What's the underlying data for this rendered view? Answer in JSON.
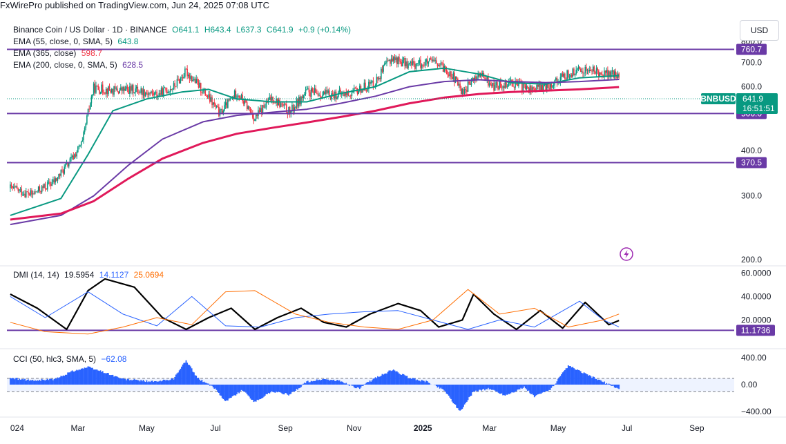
{
  "header": {
    "published": "FxWirePro published on TradingView.com, Jun 24, 2025 07:08 UTC",
    "currency_button": "USD"
  },
  "main_legend": {
    "symbol": "Binance Coin / US Dollar · 1D · BINANCE",
    "open": "O641.1",
    "high": "H643.4",
    "low": "L637.3",
    "close": "C641.9",
    "change": "+0.9 (+0.14%)",
    "ema55_label": "EMA (55, close, 0, SMA, 5)",
    "ema55_value": "643.8",
    "ema365_label": "EMA (365, close)",
    "ema365_value": "598.7",
    "ema200_label": "EMA (200, close, 0, SMA, 5)",
    "ema200_value": "628.5"
  },
  "dmi_legend": {
    "label": "DMI (14, 14)",
    "adx": "19.5954",
    "plus_di": "14.1127",
    "minus_di": "25.0694"
  },
  "cci_legend": {
    "label": "CCI (50, hlc3, SMA, 5)",
    "value": "−62.08"
  },
  "colors": {
    "up": "#089981",
    "down": "#f23645",
    "ema55": "#089981",
    "ema200": "#6a3aa6",
    "ema365": "#e0195a",
    "hline": "#6a3aa6",
    "adx": "#000000",
    "plus_di": "#2962ff",
    "minus_di": "#ff6d00",
    "cci": "#2962ff"
  },
  "chart_data": [
    {
      "type": "candlestick",
      "title": "Binance Coin / US Dollar · 1D · BINANCE",
      "x_ticks": [
        "024",
        "Mar",
        "May",
        "Jul",
        "Sep",
        "Nov",
        "2025",
        "Mar",
        "May",
        "Jul",
        "Sep"
      ],
      "y_ticks": [
        "800.0",
        "700.0",
        "600.0",
        "400.0",
        "300.0",
        "200.0"
      ],
      "ylim": [
        200,
        800
      ],
      "y_scale": "log",
      "horizontal_levels": [
        {
          "value": 760.7,
          "label": "760.7"
        },
        {
          "value": 506.0,
          "label": "506.0"
        },
        {
          "value": 370.5,
          "label": "370.5"
        }
      ],
      "last_price": {
        "symbol": "BNBUSD",
        "value": 641.9,
        "label": "641.9",
        "countdown": "16:51:51"
      },
      "close_path": [
        {
          "x": "2024-01-01",
          "y": 315
        },
        {
          "x": "2024-01-20",
          "y": 302
        },
        {
          "x": "2024-02-10",
          "y": 330
        },
        {
          "x": "2024-02-25",
          "y": 380
        },
        {
          "x": "2024-03-05",
          "y": 420
        },
        {
          "x": "2024-03-15",
          "y": 595
        },
        {
          "x": "2024-04-01",
          "y": 585
        },
        {
          "x": "2024-04-20",
          "y": 590
        },
        {
          "x": "2024-05-10",
          "y": 570
        },
        {
          "x": "2024-05-25",
          "y": 600
        },
        {
          "x": "2024-06-05",
          "y": 660
        },
        {
          "x": "2024-06-15",
          "y": 610
        },
        {
          "x": "2024-07-05",
          "y": 505
        },
        {
          "x": "2024-07-20",
          "y": 580
        },
        {
          "x": "2024-08-05",
          "y": 490
        },
        {
          "x": "2024-08-20",
          "y": 560
        },
        {
          "x": "2024-09-05",
          "y": 510
        },
        {
          "x": "2024-09-20",
          "y": 580
        },
        {
          "x": "2024-10-10",
          "y": 570
        },
        {
          "x": "2024-10-30",
          "y": 575
        },
        {
          "x": "2024-11-20",
          "y": 620
        },
        {
          "x": "2024-12-04",
          "y": 720
        },
        {
          "x": "2024-12-20",
          "y": 690
        },
        {
          "x": "2025-01-10",
          "y": 700
        },
        {
          "x": "2025-01-25",
          "y": 660
        },
        {
          "x": "2025-02-05",
          "y": 580
        },
        {
          "x": "2025-02-20",
          "y": 650
        },
        {
          "x": "2025-03-05",
          "y": 600
        },
        {
          "x": "2025-03-20",
          "y": 620
        },
        {
          "x": "2025-04-05",
          "y": 590
        },
        {
          "x": "2025-04-20",
          "y": 600
        },
        {
          "x": "2025-05-10",
          "y": 650
        },
        {
          "x": "2025-05-25",
          "y": 670
        },
        {
          "x": "2025-06-10",
          "y": 655
        },
        {
          "x": "2025-06-24",
          "y": 641.9
        }
      ],
      "series": [
        {
          "name": "EMA (55, close, 0, SMA, 5)",
          "values": [
            {
              "x": "2024-01-01",
              "y": 265
            },
            {
              "x": "2024-02-15",
              "y": 295
            },
            {
              "x": "2024-03-10",
              "y": 390
            },
            {
              "x": "2024-04-01",
              "y": 515
            },
            {
              "x": "2024-05-01",
              "y": 555
            },
            {
              "x": "2024-06-01",
              "y": 580
            },
            {
              "x": "2024-06-25",
              "y": 590
            },
            {
              "x": "2024-07-20",
              "y": 555
            },
            {
              "x": "2024-08-20",
              "y": 545
            },
            {
              "x": "2024-09-20",
              "y": 545
            },
            {
              "x": "2024-10-20",
              "y": 575
            },
            {
              "x": "2024-11-20",
              "y": 600
            },
            {
              "x": "2024-12-20",
              "y": 660
            },
            {
              "x": "2025-01-20",
              "y": 675
            },
            {
              "x": "2025-02-20",
              "y": 650
            },
            {
              "x": "2025-03-20",
              "y": 615
            },
            {
              "x": "2025-04-20",
              "y": 610
            },
            {
              "x": "2025-05-20",
              "y": 635
            },
            {
              "x": "2025-06-24",
              "y": 643.8
            }
          ]
        },
        {
          "name": "EMA (200, close, 0, SMA, 5)",
          "values": [
            {
              "x": "2024-01-01",
              "y": 250
            },
            {
              "x": "2024-02-15",
              "y": 265
            },
            {
              "x": "2024-03-15",
              "y": 300
            },
            {
              "x": "2024-04-15",
              "y": 365
            },
            {
              "x": "2024-05-15",
              "y": 430
            },
            {
              "x": "2024-06-20",
              "y": 480
            },
            {
              "x": "2024-07-20",
              "y": 500
            },
            {
              "x": "2024-08-20",
              "y": 510
            },
            {
              "x": "2024-09-20",
              "y": 520
            },
            {
              "x": "2024-10-20",
              "y": 540
            },
            {
              "x": "2024-11-20",
              "y": 565
            },
            {
              "x": "2024-12-20",
              "y": 600
            },
            {
              "x": "2025-01-20",
              "y": 620
            },
            {
              "x": "2025-02-20",
              "y": 627
            },
            {
              "x": "2025-03-20",
              "y": 620
            },
            {
              "x": "2025-04-20",
              "y": 616
            },
            {
              "x": "2025-05-20",
              "y": 620
            },
            {
              "x": "2025-06-24",
              "y": 628.5
            }
          ]
        },
        {
          "name": "EMA (365, close)",
          "values": [
            {
              "x": "2024-01-01",
              "y": 258
            },
            {
              "x": "2024-02-15",
              "y": 268
            },
            {
              "x": "2024-03-15",
              "y": 290
            },
            {
              "x": "2024-04-15",
              "y": 335
            },
            {
              "x": "2024-05-15",
              "y": 380
            },
            {
              "x": "2024-06-20",
              "y": 420
            },
            {
              "x": "2024-07-20",
              "y": 445
            },
            {
              "x": "2024-08-20",
              "y": 462
            },
            {
              "x": "2024-09-20",
              "y": 478
            },
            {
              "x": "2024-10-20",
              "y": 495
            },
            {
              "x": "2024-11-20",
              "y": 515
            },
            {
              "x": "2024-12-20",
              "y": 540
            },
            {
              "x": "2025-01-20",
              "y": 560
            },
            {
              "x": "2025-02-20",
              "y": 573
            },
            {
              "x": "2025-03-20",
              "y": 580
            },
            {
              "x": "2025-04-20",
              "y": 585
            },
            {
              "x": "2025-05-20",
              "y": 590
            },
            {
              "x": "2025-06-24",
              "y": 598.7
            }
          ]
        }
      ]
    },
    {
      "type": "line",
      "title": "DMI (14, 14)",
      "y_ticks": [
        "60.0000",
        "40.0000",
        "20.0000"
      ],
      "ylim": [
        0,
        60
      ],
      "horizontal_levels": [
        {
          "value": 11.1736,
          "label": "11.1736"
        }
      ],
      "series": [
        {
          "name": "ADX",
          "values": [
            {
              "x": "2024-01-01",
              "y": 42
            },
            {
              "x": "2024-01-25",
              "y": 30
            },
            {
              "x": "2024-02-20",
              "y": 12
            },
            {
              "x": "2024-03-10",
              "y": 45
            },
            {
              "x": "2024-03-25",
              "y": 55
            },
            {
              "x": "2024-04-20",
              "y": 48
            },
            {
              "x": "2024-05-15",
              "y": 22
            },
            {
              "x": "2024-06-05",
              "y": 12
            },
            {
              "x": "2024-06-25",
              "y": 22
            },
            {
              "x": "2024-07-15",
              "y": 30
            },
            {
              "x": "2024-08-05",
              "y": 12
            },
            {
              "x": "2024-08-25",
              "y": 22
            },
            {
              "x": "2024-09-15",
              "y": 30
            },
            {
              "x": "2024-10-05",
              "y": 18
            },
            {
              "x": "2024-10-25",
              "y": 14
            },
            {
              "x": "2024-11-15",
              "y": 25
            },
            {
              "x": "2024-12-10",
              "y": 34
            },
            {
              "x": "2024-12-30",
              "y": 28
            },
            {
              "x": "2025-01-15",
              "y": 14
            },
            {
              "x": "2025-02-05",
              "y": 20
            },
            {
              "x": "2025-02-15",
              "y": 42
            },
            {
              "x": "2025-03-05",
              "y": 25
            },
            {
              "x": "2025-03-25",
              "y": 12
            },
            {
              "x": "2025-04-15",
              "y": 28
            },
            {
              "x": "2025-05-05",
              "y": 13
            },
            {
              "x": "2025-05-25",
              "y": 35
            },
            {
              "x": "2025-06-15",
              "y": 16
            },
            {
              "x": "2025-06-24",
              "y": 19.5954
            }
          ]
        },
        {
          "name": "+DI",
          "values": [
            {
              "x": "2024-01-01",
              "y": 40
            },
            {
              "x": "2024-02-01",
              "y": 22
            },
            {
              "x": "2024-03-10",
              "y": 44
            },
            {
              "x": "2024-04-10",
              "y": 25
            },
            {
              "x": "2024-05-10",
              "y": 15
            },
            {
              "x": "2024-06-10",
              "y": 40
            },
            {
              "x": "2024-07-10",
              "y": 15
            },
            {
              "x": "2024-08-10",
              "y": 14
            },
            {
              "x": "2024-09-10",
              "y": 22
            },
            {
              "x": "2024-10-10",
              "y": 25
            },
            {
              "x": "2024-11-10",
              "y": 27
            },
            {
              "x": "2024-12-10",
              "y": 28
            },
            {
              "x": "2025-01-10",
              "y": 20
            },
            {
              "x": "2025-02-10",
              "y": 12
            },
            {
              "x": "2025-03-10",
              "y": 20
            },
            {
              "x": "2025-04-10",
              "y": 14
            },
            {
              "x": "2025-05-20",
              "y": 36
            },
            {
              "x": "2025-06-10",
              "y": 20
            },
            {
              "x": "2025-06-24",
              "y": 14.1127
            }
          ]
        },
        {
          "name": "−DI",
          "values": [
            {
              "x": "2024-01-01",
              "y": 18
            },
            {
              "x": "2024-02-01",
              "y": 10
            },
            {
              "x": "2024-03-10",
              "y": 8
            },
            {
              "x": "2024-04-10",
              "y": 14
            },
            {
              "x": "2024-05-10",
              "y": 22
            },
            {
              "x": "2024-06-10",
              "y": 16
            },
            {
              "x": "2024-07-10",
              "y": 44
            },
            {
              "x": "2024-08-05",
              "y": 45
            },
            {
              "x": "2024-09-10",
              "y": 25
            },
            {
              "x": "2024-10-10",
              "y": 18
            },
            {
              "x": "2024-11-10",
              "y": 14
            },
            {
              "x": "2024-12-10",
              "y": 12
            },
            {
              "x": "2025-01-10",
              "y": 20
            },
            {
              "x": "2025-02-10",
              "y": 46
            },
            {
              "x": "2025-03-10",
              "y": 25
            },
            {
              "x": "2025-04-10",
              "y": 30
            },
            {
              "x": "2025-05-10",
              "y": 14
            },
            {
              "x": "2025-06-10",
              "y": 20
            },
            {
              "x": "2025-06-24",
              "y": 25.0694
            }
          ]
        }
      ]
    },
    {
      "type": "histogram",
      "title": "CCI (50, hlc3, SMA, 5)",
      "y_ticks": [
        "400.00",
        "0.00",
        "−400.00"
      ],
      "ylim": [
        -450,
        450
      ],
      "band": [
        -100,
        100
      ],
      "values": [
        {
          "x": "2024-01-01",
          "y": 100
        },
        {
          "x": "2024-01-20",
          "y": 60
        },
        {
          "x": "2024-02-10",
          "y": 80
        },
        {
          "x": "2024-02-25",
          "y": 200
        },
        {
          "x": "2024-03-10",
          "y": 260
        },
        {
          "x": "2024-03-25",
          "y": 180
        },
        {
          "x": "2024-04-10",
          "y": 80
        },
        {
          "x": "2024-04-25",
          "y": 60
        },
        {
          "x": "2024-05-10",
          "y": 40
        },
        {
          "x": "2024-05-25",
          "y": 90
        },
        {
          "x": "2024-06-05",
          "y": 360
        },
        {
          "x": "2024-06-15",
          "y": 100
        },
        {
          "x": "2024-07-01",
          "y": -60
        },
        {
          "x": "2024-07-10",
          "y": -250
        },
        {
          "x": "2024-07-25",
          "y": -80
        },
        {
          "x": "2024-08-05",
          "y": -260
        },
        {
          "x": "2024-08-20",
          "y": -100
        },
        {
          "x": "2024-09-05",
          "y": -150
        },
        {
          "x": "2024-09-20",
          "y": 40
        },
        {
          "x": "2024-10-05",
          "y": 80
        },
        {
          "x": "2024-10-20",
          "y": 50
        },
        {
          "x": "2024-11-05",
          "y": -60
        },
        {
          "x": "2024-11-20",
          "y": 100
        },
        {
          "x": "2024-12-05",
          "y": 220
        },
        {
          "x": "2024-12-20",
          "y": 100
        },
        {
          "x": "2025-01-05",
          "y": 40
        },
        {
          "x": "2025-01-20",
          "y": -80
        },
        {
          "x": "2025-02-03",
          "y": -400
        },
        {
          "x": "2025-02-15",
          "y": -100
        },
        {
          "x": "2025-03-01",
          "y": -60
        },
        {
          "x": "2025-03-15",
          "y": -160
        },
        {
          "x": "2025-04-01",
          "y": -40
        },
        {
          "x": "2025-04-10",
          "y": -180
        },
        {
          "x": "2025-04-25",
          "y": -60
        },
        {
          "x": "2025-05-10",
          "y": 280
        },
        {
          "x": "2025-05-25",
          "y": 160
        },
        {
          "x": "2025-06-10",
          "y": 40
        },
        {
          "x": "2025-06-24",
          "y": -62.08
        }
      ]
    }
  ]
}
